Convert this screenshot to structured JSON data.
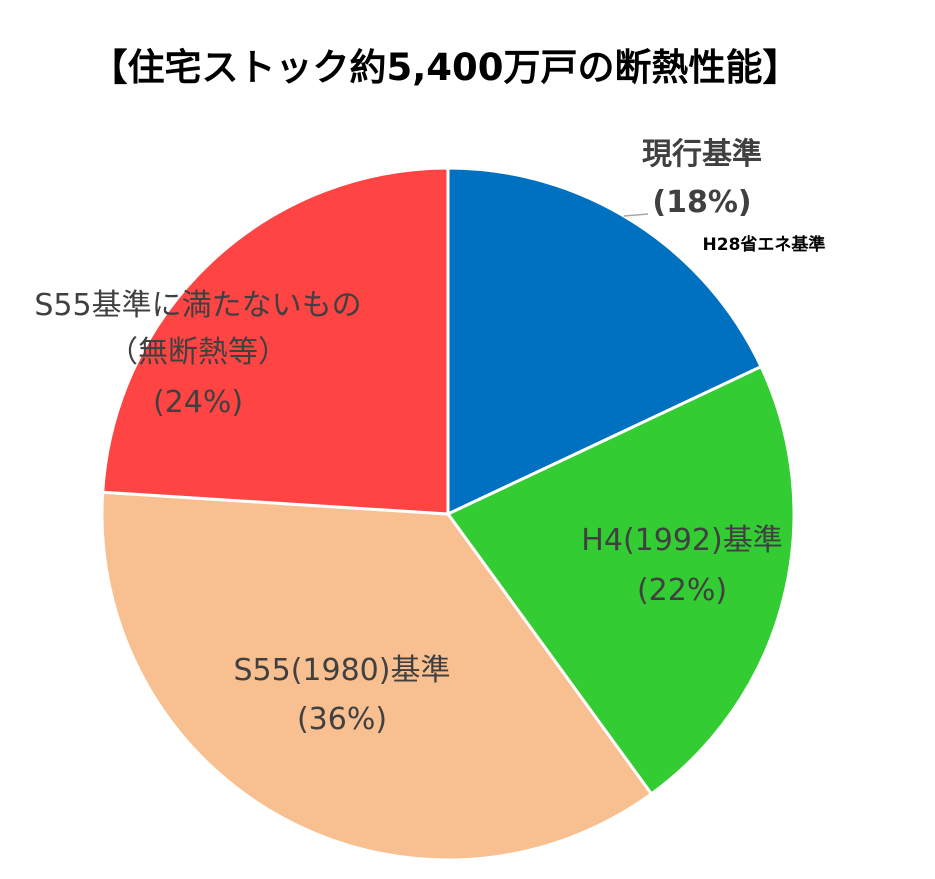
{
  "chart_data": {
    "type": "pie",
    "title": "【住宅ストック約5,400万戸の断熱性能】",
    "start_angle_deg": 0,
    "direction": "clockwise",
    "slices": [
      {
        "label": "現行基準",
        "pct_label": "(18%)",
        "value": 18,
        "color": "#0070c0",
        "note": "H28省エネ基準"
      },
      {
        "label": "H4(1992)基準",
        "pct_label": "(22%)",
        "value": 22,
        "color": "#33cc33"
      },
      {
        "label": "S55(1980)基準",
        "pct_label": "(36%)",
        "value": 36,
        "color": "#f8c090"
      },
      {
        "label": "S55基準に満たないもの",
        "sublabel": "（無断熱等）",
        "pct_label": "(24%)",
        "value": 24,
        "color": "#ff4444"
      }
    ]
  }
}
